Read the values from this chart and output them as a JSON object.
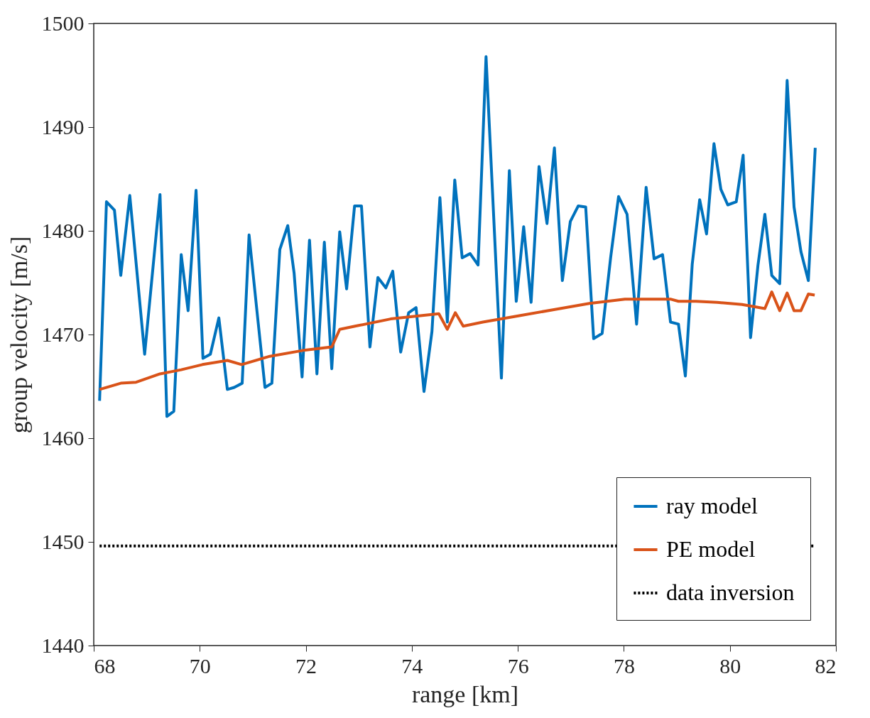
{
  "chart_data": {
    "type": "line",
    "xlabel": "range [km]",
    "ylabel": "group velocity [m/s]",
    "xlim": [
      68,
      82
    ],
    "xticks": [
      68,
      70,
      72,
      74,
      76,
      78,
      80,
      82
    ],
    "ylim": [
      1440,
      1500
    ],
    "yticks": [
      1440,
      1450,
      1460,
      1470,
      1480,
      1490,
      1500
    ],
    "grid": false,
    "legend": "bottom right",
    "marker": "none",
    "series": [
      {
        "name": "ray model",
        "color": "#0072bd",
        "line_style": "solid",
        "x": [
          68.11,
          68.24,
          68.39,
          68.51,
          68.68,
          68.96,
          69.25,
          69.38,
          69.51,
          69.65,
          69.78,
          69.93,
          70.06,
          70.2,
          70.36,
          70.52,
          70.65,
          70.8,
          70.93,
          71.08,
          71.23,
          71.36,
          71.51,
          71.66,
          71.78,
          71.93,
          72.07,
          72.21,
          72.35,
          72.49,
          72.64,
          72.77,
          72.92,
          73.05,
          73.21,
          73.36,
          73.51,
          73.64,
          73.79,
          73.94,
          74.08,
          74.23,
          74.38,
          74.53,
          74.67,
          74.81,
          74.95,
          75.1,
          75.25,
          75.4,
          75.69,
          75.84,
          75.97,
          76.11,
          76.25,
          76.4,
          76.55,
          76.69,
          76.84,
          76.99,
          77.14,
          77.28,
          77.43,
          77.59,
          77.75,
          77.9,
          78.06,
          78.24,
          78.42,
          78.57,
          78.73,
          78.88,
          79.03,
          79.16,
          79.29,
          79.43,
          79.56,
          79.7,
          79.83,
          79.96,
          80.12,
          80.25,
          80.39,
          80.53,
          80.66,
          80.79,
          80.94,
          81.08,
          81.21,
          81.34,
          81.48,
          81.61
        ],
        "values": [
          1463.6,
          1482.8,
          1482,
          1475.7,
          1483.4,
          1468.1,
          1483.5,
          1462.1,
          1462.6,
          1477.7,
          1472.3,
          1483.9,
          1467.7,
          1468.1,
          1471.6,
          1464.7,
          1464.9,
          1465.3,
          1479.6,
          1472.2,
          1464.9,
          1465.3,
          1478.2,
          1480.5,
          1475.9,
          1465.9,
          1479.1,
          1466.2,
          1478.9,
          1466.7,
          1479.9,
          1474.4,
          1482.4,
          1482.4,
          1468.8,
          1475.5,
          1474.5,
          1476.1,
          1468.3,
          1472.1,
          1472.6,
          1464.5,
          1470.3,
          1483.2,
          1471.2,
          1484.9,
          1477.4,
          1477.8,
          1476.7,
          1496.8,
          1465.8,
          1485.8,
          1473.2,
          1480.4,
          1473.1,
          1486.2,
          1480.7,
          1488,
          1475.2,
          1480.9,
          1482.4,
          1482.3,
          1469.6,
          1470.1,
          1477.4,
          1483.3,
          1481.6,
          1471,
          1484.2,
          1477.3,
          1477.7,
          1471.2,
          1471,
          1466,
          1476.8,
          1483,
          1479.7,
          1488.4,
          1484,
          1482.5,
          1482.8,
          1487.3,
          1469.7,
          1476.7,
          1481.6,
          1475.7,
          1474.9,
          1494.5,
          1482.3,
          1478,
          1475.2,
          1488
        ]
      },
      {
        "name": "PE model",
        "color": "#d95319",
        "line_style": "solid",
        "x": [
          68.11,
          68.51,
          68.8,
          69.25,
          69.65,
          70.05,
          70.52,
          70.79,
          71.32,
          71.99,
          72.49,
          72.64,
          72.93,
          73.6,
          74.51,
          74.67,
          74.82,
          74.97,
          75.34,
          76.01,
          76.68,
          77.35,
          78.02,
          78.56,
          78.89,
          79.03,
          79.36,
          79.76,
          80.23,
          80.66,
          80.79,
          80.94,
          81.08,
          81.21,
          81.34,
          81.48,
          81.6
        ],
        "values": [
          1464.7,
          1465.3,
          1465.4,
          1466.2,
          1466.6,
          1467.1,
          1467.5,
          1467.1,
          1467.9,
          1468.5,
          1468.8,
          1470.5,
          1470.8,
          1471.5,
          1472,
          1470.5,
          1472.1,
          1470.8,
          1471.2,
          1471.8,
          1472.4,
          1473,
          1473.4,
          1473.4,
          1473.4,
          1473.2,
          1473.2,
          1473.1,
          1472.9,
          1472.5,
          1474.1,
          1472.3,
          1474,
          1472.3,
          1472.3,
          1473.9,
          1473.8
        ]
      },
      {
        "name": "data inversion",
        "color": "#000000",
        "line_style": "dotted",
        "x": [
          68.11,
          81.61
        ],
        "values": [
          1449.6,
          1449.6
        ]
      }
    ]
  }
}
